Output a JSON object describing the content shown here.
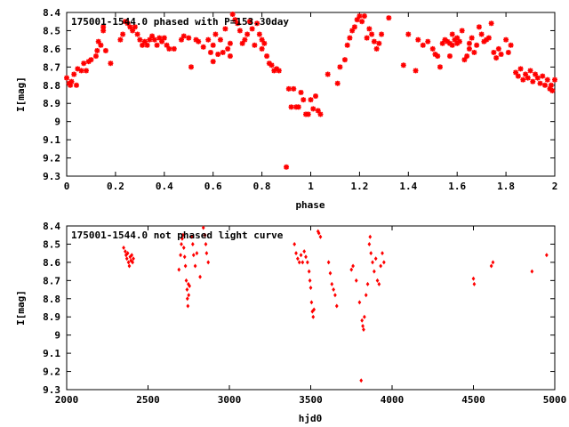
{
  "chart_data": [
    {
      "type": "scatter",
      "title": "175001-1544.0 phased with P=153.30day",
      "xlabel": "phase",
      "ylabel": "I[mag]",
      "xlim": [
        0,
        2
      ],
      "ylim": [
        9.3,
        8.4
      ],
      "y_inverted": true,
      "x_ticks": [
        "0",
        "0.2",
        "0.4",
        "0.6",
        "0.8",
        "1",
        "1.2",
        "1.4",
        "1.6",
        "1.8",
        "2"
      ],
      "y_ticks": [
        "8.4",
        "8.5",
        "8.6",
        "8.7",
        "8.8",
        "8.9",
        "9",
        "9.1",
        "9.2",
        "9.3"
      ],
      "grid": false,
      "marker": "star",
      "marker_color": "#ff0000",
      "series": [
        {
          "points": [
            [
              0.0,
              8.76
            ],
            [
              0.01,
              8.79
            ],
            [
              0.015,
              8.8
            ],
            [
              0.02,
              8.78
            ],
            [
              0.03,
              8.74
            ],
            [
              0.04,
              8.8
            ],
            [
              0.045,
              8.71
            ],
            [
              0.06,
              8.72
            ],
            [
              0.07,
              8.68
            ],
            [
              0.08,
              8.72
            ],
            [
              0.09,
              8.67
            ],
            [
              0.1,
              8.66
            ],
            [
              0.12,
              8.64
            ],
            [
              0.125,
              8.61
            ],
            [
              0.13,
              8.56
            ],
            [
              0.14,
              8.58
            ],
            [
              0.15,
              8.5
            ],
            [
              0.15,
              8.48
            ],
            [
              0.16,
              8.61
            ],
            [
              0.18,
              8.68
            ],
            [
              0.22,
              8.55
            ],
            [
              0.23,
              8.52
            ],
            [
              0.24,
              8.45
            ],
            [
              0.25,
              8.46
            ],
            [
              0.26,
              8.48
            ],
            [
              0.27,
              8.5
            ],
            [
              0.28,
              8.48
            ],
            [
              0.29,
              8.52
            ],
            [
              0.3,
              8.55
            ],
            [
              0.31,
              8.58
            ],
            [
              0.32,
              8.56
            ],
            [
              0.33,
              8.58
            ],
            [
              0.34,
              8.55
            ],
            [
              0.35,
              8.53
            ],
            [
              0.36,
              8.55
            ],
            [
              0.37,
              8.58
            ],
            [
              0.38,
              8.54
            ],
            [
              0.39,
              8.56
            ],
            [
              0.4,
              8.54
            ],
            [
              0.41,
              8.58
            ],
            [
              0.42,
              8.6
            ],
            [
              0.44,
              8.6
            ],
            [
              0.47,
              8.55
            ],
            [
              0.48,
              8.53
            ],
            [
              0.5,
              8.54
            ],
            [
              0.51,
              8.7
            ],
            [
              0.53,
              8.55
            ],
            [
              0.54,
              8.56
            ],
            [
              0.56,
              8.59
            ],
            [
              0.58,
              8.55
            ],
            [
              0.59,
              8.62
            ],
            [
              0.6,
              8.58
            ],
            [
              0.61,
              8.52
            ],
            [
              0.6,
              8.67
            ],
            [
              0.62,
              8.63
            ],
            [
              0.63,
              8.55
            ],
            [
              0.64,
              8.62
            ],
            [
              0.65,
              8.49
            ],
            [
              0.66,
              8.6
            ],
            [
              0.67,
              8.57
            ],
            [
              0.67,
              8.64
            ],
            [
              0.68,
              8.41
            ],
            [
              0.69,
              8.44
            ],
            [
              0.7,
              8.46
            ],
            [
              0.71,
              8.5
            ],
            [
              0.72,
              8.57
            ],
            [
              0.73,
              8.55
            ],
            [
              0.74,
              8.52
            ],
            [
              0.75,
              8.45
            ],
            [
              0.76,
              8.49
            ],
            [
              0.77,
              8.58
            ],
            [
              0.78,
              8.46
            ],
            [
              0.79,
              8.52
            ],
            [
              0.8,
              8.55
            ],
            [
              0.81,
              8.57
            ],
            [
              0.8,
              8.6
            ],
            [
              0.82,
              8.64
            ],
            [
              0.83,
              8.68
            ],
            [
              0.84,
              8.69
            ],
            [
              0.85,
              8.72
            ],
            [
              0.86,
              8.71
            ],
            [
              0.87,
              8.72
            ],
            [
              0.9,
              9.25
            ],
            [
              0.91,
              8.82
            ],
            [
              0.92,
              8.92
            ],
            [
              0.93,
              8.82
            ],
            [
              0.94,
              8.92
            ],
            [
              0.95,
              8.92
            ],
            [
              0.96,
              8.84
            ],
            [
              0.97,
              8.88
            ],
            [
              0.98,
              8.96
            ],
            [
              0.99,
              8.96
            ],
            [
              1.0,
              8.88
            ],
            [
              1.01,
              8.93
            ],
            [
              1.02,
              8.86
            ],
            [
              1.03,
              8.94
            ],
            [
              1.04,
              8.96
            ],
            [
              1.07,
              8.74
            ],
            [
              1.11,
              8.79
            ],
            [
              1.12,
              8.7
            ],
            [
              1.14,
              8.66
            ],
            [
              1.15,
              8.58
            ],
            [
              1.16,
              8.54
            ],
            [
              1.17,
              8.5
            ],
            [
              1.18,
              8.48
            ],
            [
              1.19,
              8.44
            ],
            [
              1.2,
              8.42
            ],
            [
              1.21,
              8.45
            ],
            [
              1.22,
              8.42
            ],
            [
              1.23,
              8.54
            ],
            [
              1.24,
              8.49
            ],
            [
              1.25,
              8.52
            ],
            [
              1.26,
              8.56
            ],
            [
              1.27,
              8.6
            ],
            [
              1.28,
              8.57
            ],
            [
              1.29,
              8.52
            ],
            [
              1.32,
              8.43
            ],
            [
              1.38,
              8.69
            ],
            [
              1.4,
              8.52
            ],
            [
              1.43,
              8.72
            ],
            [
              1.44,
              8.55
            ],
            [
              1.46,
              8.58
            ],
            [
              1.48,
              8.56
            ],
            [
              1.5,
              8.6
            ],
            [
              1.51,
              8.63
            ],
            [
              1.52,
              8.64
            ],
            [
              1.53,
              8.7
            ],
            [
              1.54,
              8.57
            ],
            [
              1.55,
              8.55
            ],
            [
              1.56,
              8.56
            ],
            [
              1.57,
              8.57
            ],
            [
              1.57,
              8.64
            ],
            [
              1.58,
              8.58
            ],
            [
              1.58,
              8.52
            ],
            [
              1.59,
              8.55
            ],
            [
              1.6,
              8.57
            ],
            [
              1.6,
              8.54
            ],
            [
              1.61,
              8.56
            ],
            [
              1.62,
              8.5
            ],
            [
              1.63,
              8.66
            ],
            [
              1.64,
              8.64
            ],
            [
              1.65,
              8.6
            ],
            [
              1.65,
              8.57
            ],
            [
              1.66,
              8.54
            ],
            [
              1.67,
              8.62
            ],
            [
              1.68,
              8.58
            ],
            [
              1.69,
              8.48
            ],
            [
              1.7,
              8.52
            ],
            [
              1.71,
              8.56
            ],
            [
              1.72,
              8.55
            ],
            [
              1.73,
              8.54
            ],
            [
              1.74,
              8.46
            ],
            [
              1.75,
              8.62
            ],
            [
              1.76,
              8.65
            ],
            [
              1.77,
              8.6
            ],
            [
              1.78,
              8.63
            ],
            [
              1.8,
              8.55
            ],
            [
              1.81,
              8.62
            ],
            [
              1.82,
              8.58
            ],
            [
              1.84,
              8.73
            ],
            [
              1.85,
              8.75
            ],
            [
              1.86,
              8.71
            ],
            [
              1.87,
              8.77
            ],
            [
              1.88,
              8.74
            ],
            [
              1.89,
              8.76
            ],
            [
              1.9,
              8.72
            ],
            [
              1.91,
              8.78
            ],
            [
              1.92,
              8.74
            ],
            [
              1.93,
              8.76
            ],
            [
              1.94,
              8.79
            ],
            [
              1.95,
              8.75
            ],
            [
              1.96,
              8.8
            ],
            [
              1.97,
              8.77
            ],
            [
              1.98,
              8.82
            ],
            [
              1.985,
              8.8
            ],
            [
              1.99,
              8.83
            ],
            [
              2.0,
              8.77
            ]
          ]
        }
      ]
    },
    {
      "type": "scatter",
      "title": "175001-1544.0 not phased light curve",
      "xlabel": "hjd0",
      "ylabel": "I[mag]",
      "xlim": [
        2000,
        5000
      ],
      "ylim": [
        9.3,
        8.4
      ],
      "y_inverted": true,
      "x_ticks": [
        "2000",
        "2500",
        "3000",
        "3500",
        "4000",
        "4500",
        "5000"
      ],
      "y_ticks": [
        "8.4",
        "8.5",
        "8.6",
        "8.7",
        "8.8",
        "8.9",
        "9",
        "9.1",
        "9.2",
        "9.3"
      ],
      "grid": false,
      "marker": "diamond",
      "marker_color": "#ff0000",
      "series": [
        {
          "points": [
            [
              2350,
              8.52
            ],
            [
              2360,
              8.54
            ],
            [
              2365,
              8.56
            ],
            [
              2370,
              8.58
            ],
            [
              2375,
              8.55
            ],
            [
              2380,
              8.6
            ],
            [
              2385,
              8.62
            ],
            [
              2390,
              8.57
            ],
            [
              2395,
              8.59
            ],
            [
              2400,
              8.56
            ],
            [
              2405,
              8.6
            ],
            [
              2410,
              8.58
            ],
            [
              2690,
              8.64
            ],
            [
              2700,
              8.56
            ],
            [
              2705,
              8.5
            ],
            [
              2710,
              8.47
            ],
            [
              2715,
              8.45
            ],
            [
              2720,
              8.52
            ],
            [
              2725,
              8.57
            ],
            [
              2730,
              8.62
            ],
            [
              2735,
              8.7
            ],
            [
              2740,
              8.75
            ],
            [
              2742,
              8.8
            ],
            [
              2745,
              8.84
            ],
            [
              2748,
              8.72
            ],
            [
              2750,
              8.78
            ],
            [
              2755,
              8.73
            ],
            [
              2770,
              8.46
            ],
            [
              2775,
              8.5
            ],
            [
              2780,
              8.56
            ],
            [
              2790,
              8.62
            ],
            [
              2800,
              8.55
            ],
            [
              2820,
              8.68
            ],
            [
              2840,
              8.41
            ],
            [
              2850,
              8.45
            ],
            [
              2855,
              8.5
            ],
            [
              2860,
              8.55
            ],
            [
              2870,
              8.6
            ],
            [
              3400,
              8.5
            ],
            [
              3410,
              8.55
            ],
            [
              3420,
              8.58
            ],
            [
              3430,
              8.6
            ],
            [
              3440,
              8.56
            ],
            [
              3450,
              8.6
            ],
            [
              3460,
              8.54
            ],
            [
              3470,
              8.57
            ],
            [
              3480,
              8.6
            ],
            [
              3490,
              8.65
            ],
            [
              3495,
              8.7
            ],
            [
              3500,
              8.74
            ],
            [
              3505,
              8.82
            ],
            [
              3510,
              8.87
            ],
            [
              3515,
              8.9
            ],
            [
              3520,
              8.86
            ],
            [
              3545,
              8.43
            ],
            [
              3550,
              8.44
            ],
            [
              3560,
              8.46
            ],
            [
              3610,
              8.6
            ],
            [
              3620,
              8.66
            ],
            [
              3630,
              8.72
            ],
            [
              3640,
              8.75
            ],
            [
              3650,
              8.78
            ],
            [
              3660,
              8.84
            ],
            [
              3750,
              8.64
            ],
            [
              3760,
              8.62
            ],
            [
              3780,
              8.7
            ],
            [
              3800,
              8.82
            ],
            [
              3810,
              9.25
            ],
            [
              3815,
              8.92
            ],
            [
              3820,
              8.95
            ],
            [
              3825,
              8.97
            ],
            [
              3830,
              8.9
            ],
            [
              3840,
              8.78
            ],
            [
              3850,
              8.72
            ],
            [
              3860,
              8.5
            ],
            [
              3865,
              8.46
            ],
            [
              3870,
              8.55
            ],
            [
              3880,
              8.6
            ],
            [
              3890,
              8.65
            ],
            [
              3900,
              8.58
            ],
            [
              3910,
              8.7
            ],
            [
              3920,
              8.72
            ],
            [
              3930,
              8.62
            ],
            [
              3940,
              8.55
            ],
            [
              3950,
              8.6
            ],
            [
              4500,
              8.69
            ],
            [
              4505,
              8.72
            ],
            [
              4610,
              8.62
            ],
            [
              4620,
              8.6
            ],
            [
              4860,
              8.65
            ],
            [
              4950,
              8.56
            ]
          ]
        }
      ]
    }
  ]
}
